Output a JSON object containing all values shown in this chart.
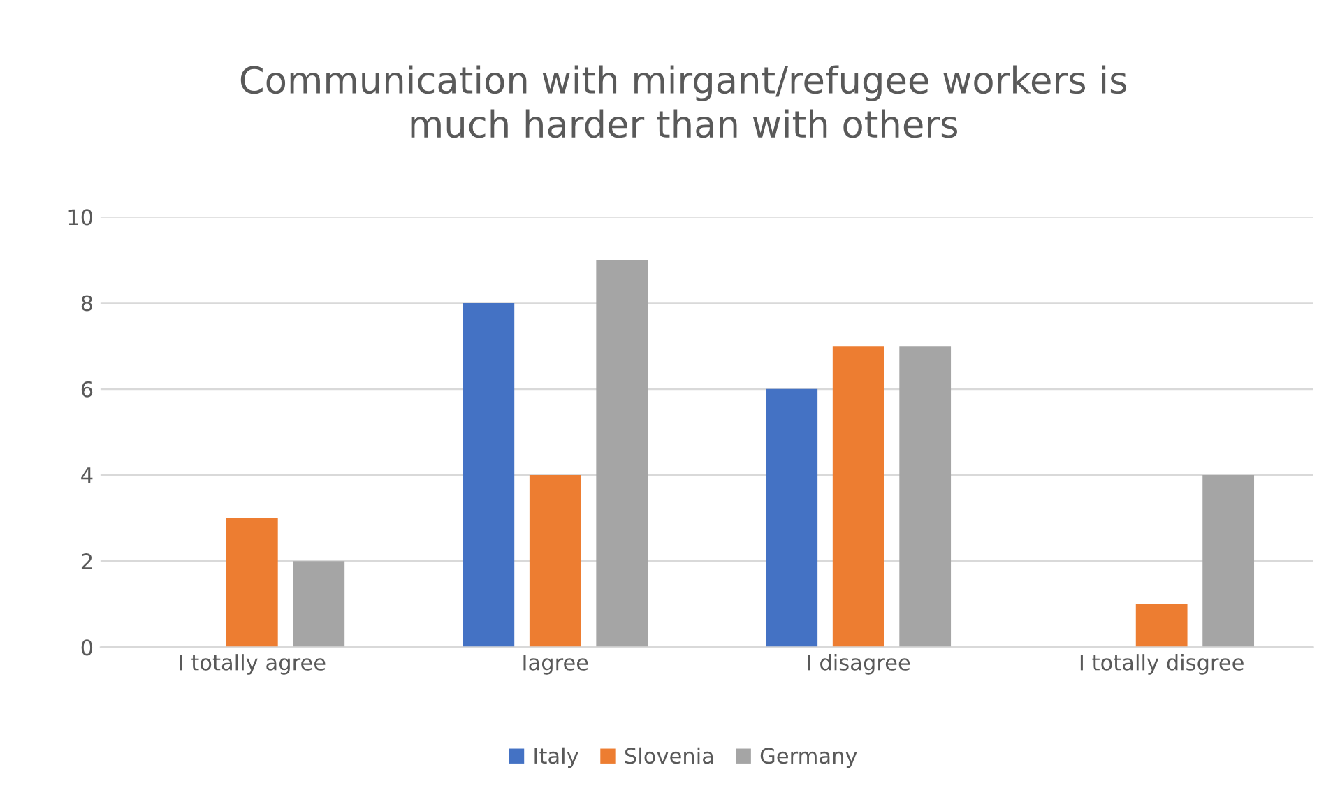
{
  "chart_data": {
    "type": "bar",
    "title": "Communication with mirgant/refugee workers is\nmuch harder than with others",
    "categories": [
      "I totally agree",
      "Iagree",
      "I disagree",
      "I totally disgree"
    ],
    "series": [
      {
        "name": "Italy",
        "color": "#4472c4",
        "values": [
          0,
          8,
          6,
          0
        ]
      },
      {
        "name": "Slovenia",
        "color": "#ed7d31",
        "values": [
          3,
          4,
          7,
          1
        ]
      },
      {
        "name": "Germany",
        "color": "#a5a5a5",
        "values": [
          2,
          9,
          7,
          4
        ]
      }
    ],
    "ylim": [
      0,
      10
    ],
    "yticks": [
      0,
      2,
      4,
      6,
      8,
      10
    ],
    "grid": "y",
    "legend": "bottom"
  }
}
